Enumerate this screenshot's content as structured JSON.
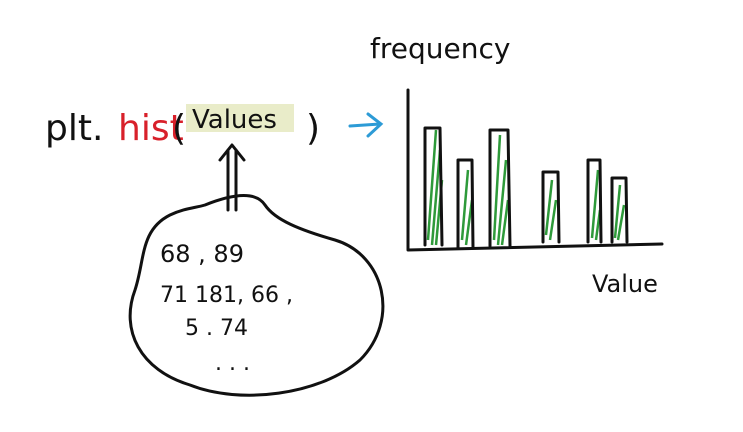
{
  "code": {
    "prefix": "plt.",
    "function": "hist",
    "open": "(",
    "argument": "Values",
    "close": ")"
  },
  "blob": {
    "lines": [
      "68 , 89",
      "71 181, 66 ,",
      "5 . 74",
      ". . ."
    ]
  },
  "sketch": {
    "y_label": "frequency",
    "x_label": "Value"
  }
}
